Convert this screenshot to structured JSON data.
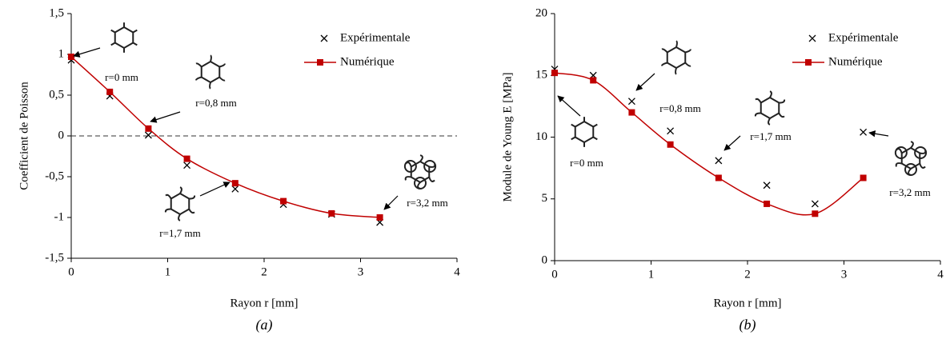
{
  "chart_data": [
    {
      "type": "line",
      "x_label": "Rayon r [mm]",
      "y_label": "Coefficient de Poisson",
      "caption": "(a)",
      "x": [
        0,
        0.4,
        0.8,
        1.2,
        1.7,
        2.2,
        2.7,
        3.2
      ],
      "series": [
        {
          "name": "Expérimentale",
          "color": "#000000",
          "marker": "x",
          "values": [
            0.93,
            0.49,
            0.01,
            -0.36,
            -0.65,
            -0.84,
            -0.96,
            -1.06
          ]
        },
        {
          "name": "Numérique",
          "color": "#c00000",
          "marker": "square",
          "smooth": true,
          "values": [
            0.97,
            0.54,
            0.09,
            -0.28,
            -0.58,
            -0.8,
            -0.95,
            -1.0
          ]
        }
      ],
      "xlim": [
        0,
        4
      ],
      "xticks": [
        0,
        1,
        2,
        3,
        4
      ],
      "ylim": [
        -1.5,
        1.5
      ],
      "yticks": [
        {
          "value": 1.5,
          "label": "1,5"
        },
        1,
        {
          "value": 0.5,
          "label": "0,5"
        },
        0,
        {
          "value": -0.5,
          "label": "-0,5"
        },
        -1,
        {
          "value": -1.5,
          "label": "-1,5"
        }
      ],
      "reference_line_y": 0,
      "annotations": [
        "r=0 mm",
        "r=0,8 mm",
        "r=1,7 mm",
        "r=3,2 mm"
      ]
    },
    {
      "type": "line",
      "x_label": "Rayon r [mm]",
      "y_label": "Module de Young E [MPa]",
      "caption": "(b)",
      "x": [
        0,
        0.4,
        0.8,
        1.2,
        1.7,
        2.2,
        2.7,
        3.2
      ],
      "series": [
        {
          "name": "Expérimentale",
          "color": "#000000",
          "marker": "x",
          "values": [
            15.5,
            15.0,
            12.9,
            10.5,
            8.1,
            6.1,
            4.6,
            10.4
          ]
        },
        {
          "name": "Numérique",
          "color": "#c00000",
          "marker": "square",
          "smooth": true,
          "values": [
            15.2,
            14.6,
            12.0,
            9.4,
            6.7,
            4.6,
            3.8,
            6.7
          ]
        }
      ],
      "xlim": [
        0,
        4
      ],
      "xticks": [
        0,
        1,
        2,
        3,
        4
      ],
      "ylim": [
        0,
        20
      ],
      "yticks": [
        0,
        5,
        10,
        15,
        20
      ],
      "annotations": [
        "r=0 mm",
        "r=0,8 mm",
        "r=1,7 mm",
        "r=3,2 mm"
      ]
    }
  ]
}
